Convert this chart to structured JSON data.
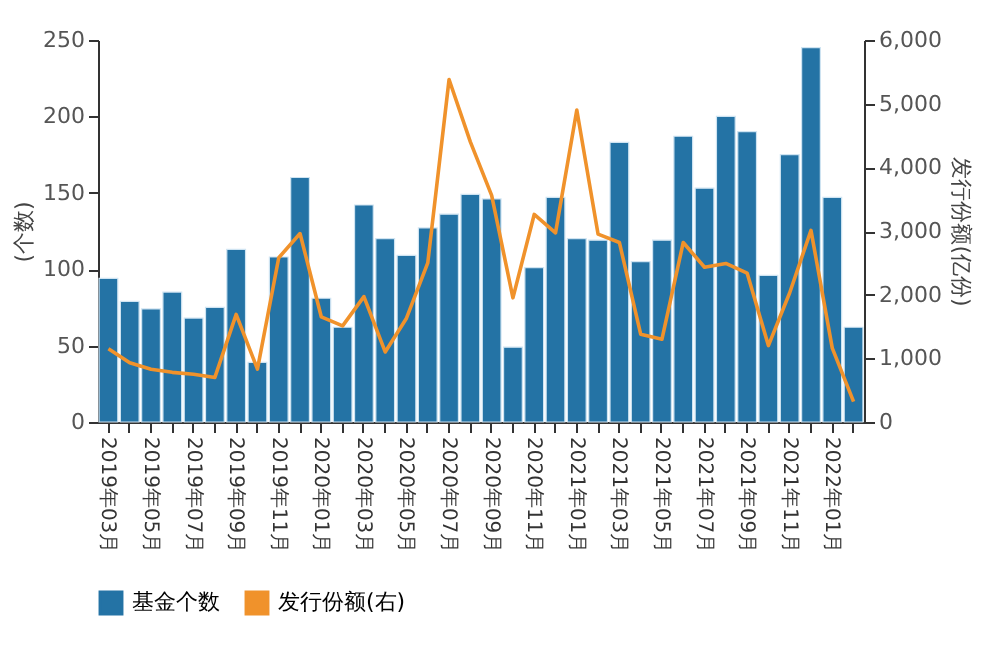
{
  "chart_data": {
    "type": "bar",
    "categories": [
      "2019年03月",
      null,
      "2019年05月",
      null,
      "2019年07月",
      null,
      "2019年09月",
      null,
      "2019年11月",
      null,
      "2020年01月",
      null,
      "2020年03月",
      null,
      "2020年05月",
      null,
      "2020年07月",
      null,
      "2020年09月",
      null,
      "2020年11月",
      null,
      "2021年01月",
      null,
      "2021年03月",
      null,
      "2021年05月",
      null,
      "2021年07月",
      null,
      "2021年09月",
      null,
      "2021年11月",
      null,
      "2022年01月",
      null
    ],
    "series": [
      {
        "name": "基金个数",
        "color": "#2473a5",
        "values": [
          94,
          79,
          74,
          85,
          68,
          75,
          113,
          39,
          108,
          160,
          81,
          62,
          142,
          120,
          109,
          127,
          136,
          149,
          146,
          49,
          101,
          147,
          120,
          119,
          183,
          105,
          119,
          187,
          153,
          200,
          190,
          96,
          175,
          245,
          147,
          62
        ]
      },
      {
        "name": "发行份额(右)",
        "type": "line",
        "axis": "y2",
        "color": "#f0922b",
        "values": [
          1150,
          930,
          830,
          780,
          750,
          700,
          1690,
          830,
          2580,
          2960,
          1650,
          1510,
          1970,
          1100,
          1630,
          2500,
          5380,
          4400,
          3560,
          1950,
          3260,
          2970,
          4900,
          2950,
          2820,
          1380,
          1300,
          2820,
          2430,
          2490,
          2340,
          1200,
          2030,
          3010,
          1160,
          320
        ]
      }
    ],
    "ylabel": "(个数)",
    "y2label": "发行份额(亿份)",
    "ylim": [
      0,
      250
    ],
    "yticks": [
      0,
      50,
      100,
      150,
      200,
      250
    ],
    "y2lim": [
      0,
      6000
    ],
    "y2ticks": [
      0,
      {
        "value": 1000,
        "label": "1,000"
      },
      {
        "value": 2000,
        "label": "2,000"
      },
      {
        "value": 3000,
        "label": "3,000"
      },
      {
        "value": 4000,
        "label": "4,000"
      },
      {
        "value": 5000,
        "label": "5,000"
      },
      {
        "value": 6000,
        "label": "6,000"
      }
    ],
    "legend": "bottom"
  }
}
